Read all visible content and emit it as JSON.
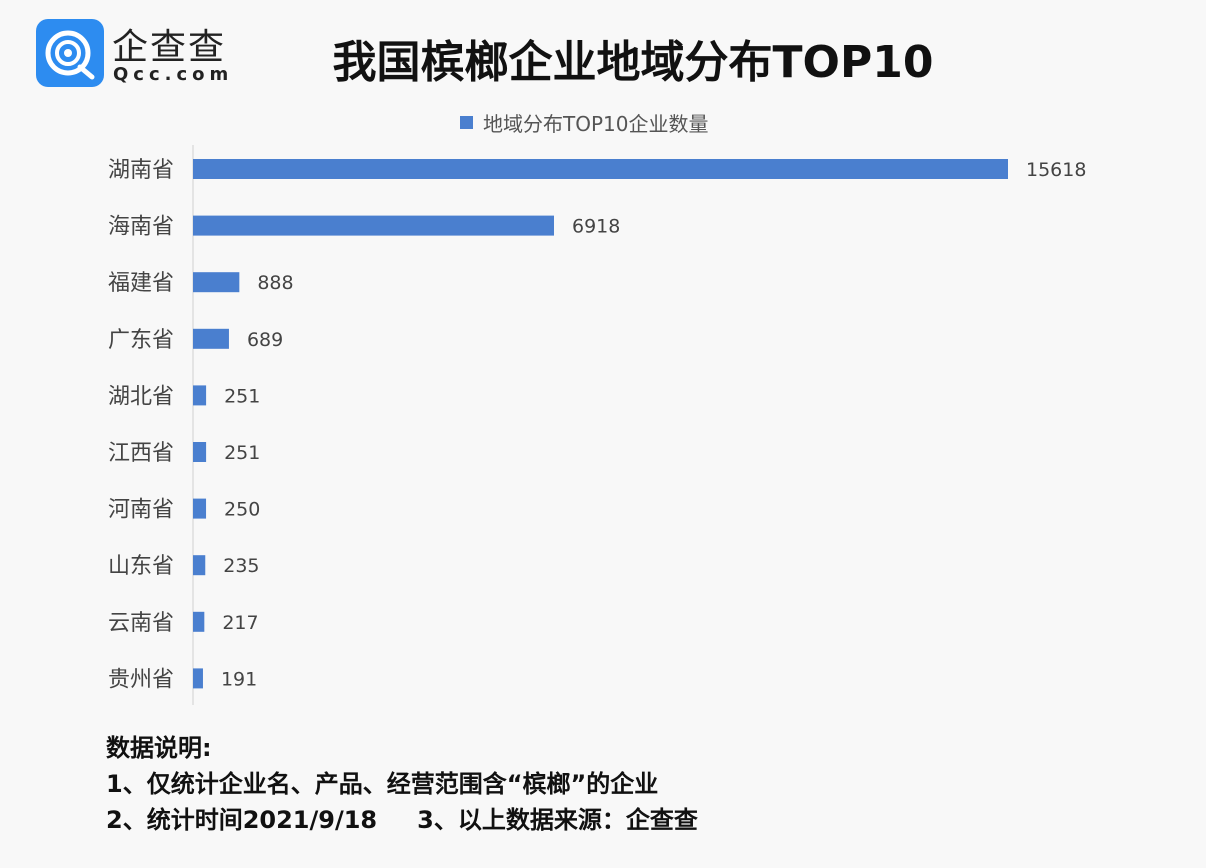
{
  "logo": {
    "cn": "企查查",
    "en": "Qcc.com"
  },
  "chart_data": {
    "type": "bar",
    "orientation": "horizontal",
    "title": "我国槟榔企业地域分布TOP10",
    "legend": "地域分布TOP10企业数量",
    "legend_position": "top",
    "categories": [
      "湖南省",
      "海南省",
      "福建省",
      "广东省",
      "湖北省",
      "江西省",
      "河南省",
      "山东省",
      "云南省",
      "贵州省"
    ],
    "values": [
      15618,
      6918,
      888,
      689,
      251,
      251,
      250,
      235,
      217,
      191
    ],
    "xlim": [
      0,
      16000
    ],
    "color": "#4a7fcf",
    "grid": false
  },
  "notes": {
    "heading": "数据说明:",
    "line1": "1、仅统计企业名、产品、经营范围含“槟榔”的企业",
    "line2a": "2、统计时间2021/9/18",
    "line2b": "3、以上数据来源：企查查"
  }
}
